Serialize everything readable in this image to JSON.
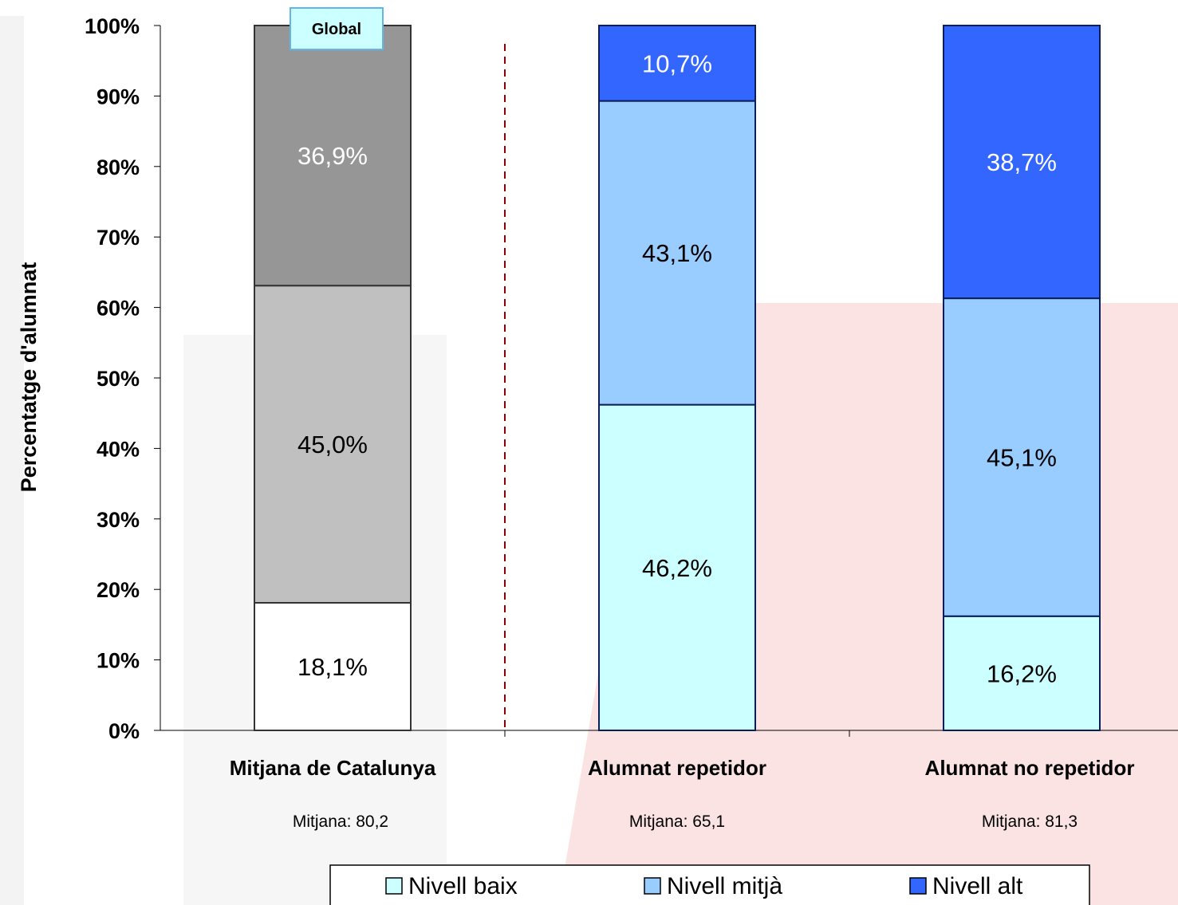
{
  "chart_data": {
    "type": "bar",
    "stacked": true,
    "ylabel": "Percentatge d'alumnat",
    "ylim": [
      0,
      100
    ],
    "y_ticks": [
      "0%",
      "10%",
      "20%",
      "30%",
      "40%",
      "50%",
      "60%",
      "70%",
      "80%",
      "90%",
      "100%"
    ],
    "y_tick_values": [
      0,
      10,
      20,
      30,
      40,
      50,
      60,
      70,
      80,
      90,
      100
    ],
    "grid": false,
    "categories": [
      "Mitjana de Catalunya",
      "Alumnat repetidor",
      "Alumnat no repetidor"
    ],
    "category_sublabels": [
      "Mitjana: 80,2",
      "Mitjana: 65,1",
      "Mitjana: 81,3"
    ],
    "series": [
      {
        "name": "Nivell baix",
        "values": [
          18.1,
          46.2,
          16.2
        ],
        "labels": [
          "18,1%",
          "46,2%",
          "16,2%"
        ]
      },
      {
        "name": "Nivell mitjà",
        "values": [
          45.0,
          43.1,
          45.1
        ],
        "labels": [
          "45,0%",
          "43,1%",
          "45,1%"
        ]
      },
      {
        "name": "Nivell alt",
        "values": [
          36.9,
          10.7,
          38.7
        ],
        "labels": [
          "36,9%",
          "10,7%",
          "38,7%"
        ]
      }
    ],
    "colors": {
      "Nivell baix": "#ccffff",
      "Nivell mitjà": "#99ccff",
      "Nivell alt": "#3366ff"
    },
    "global_colors": [
      "#ffffff",
      "#c0c0c0",
      "#969696"
    ],
    "annotation": "Global",
    "separator_color": "#8b0000",
    "legend": {
      "placement": "bottom"
    }
  }
}
